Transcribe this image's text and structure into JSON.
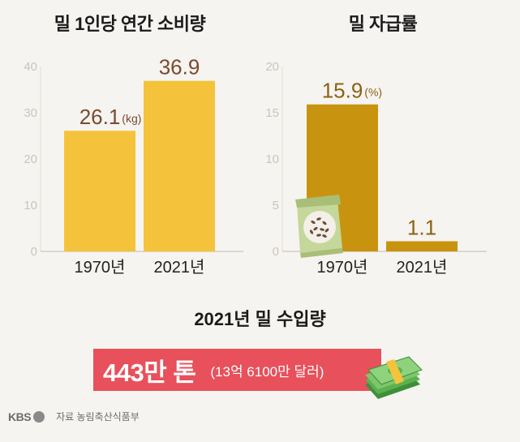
{
  "chart_data": [
    {
      "type": "bar",
      "title": "밀 1인당 연간 소비량",
      "categories": [
        "1970년",
        "2021년"
      ],
      "values": [
        26.1,
        36.9
      ],
      "value_labels": [
        "26.1",
        "36.9"
      ],
      "unit_label": "(kg)",
      "yticks": [
        0,
        10,
        20,
        30,
        40
      ],
      "ylim": [
        0,
        40
      ],
      "bar_color": "#f5c33b",
      "value_label_color": "#7a4a2e",
      "xlabel": "",
      "ylabel": ""
    },
    {
      "type": "bar",
      "title": "밀 자급률",
      "categories": [
        "1970년",
        "2021년"
      ],
      "values": [
        15.9,
        1.1
      ],
      "value_labels": [
        "15.9",
        "1.1"
      ],
      "unit_label": "(%)",
      "yticks": [
        0,
        5,
        10,
        15,
        20
      ],
      "ylim": [
        0,
        20
      ],
      "bar_color": "#c8940f",
      "value_label_color": "#8a6312",
      "xlabel": "",
      "ylabel": ""
    }
  ],
  "import": {
    "title": "2021년 밀 수입량",
    "amount": "443만 톤",
    "detail": "(13억 6100만 달러)",
    "box_color": "#e8505b"
  },
  "footer": {
    "logo_text": "KBS",
    "source": "자료 농림축산식품부"
  },
  "icons": [
    "grain-sack-icon",
    "money-stack-icon",
    "kbs-logo-icon"
  ]
}
